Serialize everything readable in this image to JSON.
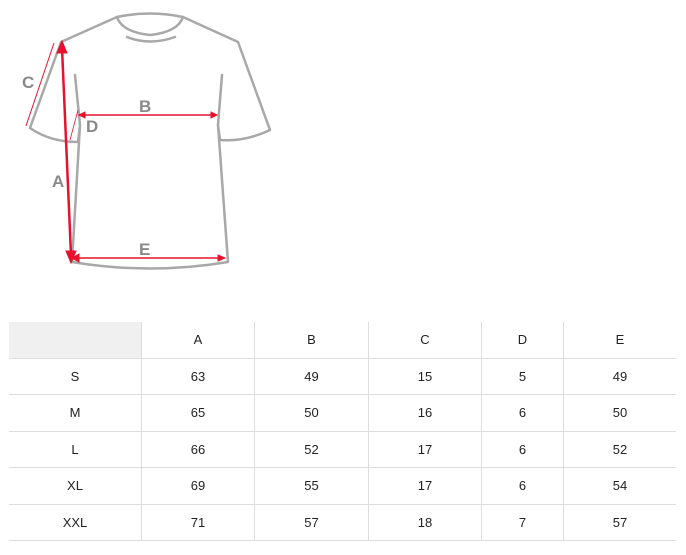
{
  "diagram": {
    "labels": {
      "A": "A",
      "B": "B",
      "C": "C",
      "D": "D",
      "E": "E"
    },
    "colors": {
      "outline": "#a0a0a0",
      "arrow": "#e8112d",
      "label": "#8a8a8a"
    }
  },
  "table": {
    "columns": [
      "",
      "A",
      "B",
      "C",
      "D",
      "E"
    ],
    "rows": [
      [
        "S",
        "63",
        "49",
        "15",
        "5",
        "49"
      ],
      [
        "M",
        "65",
        "50",
        "16",
        "6",
        "50"
      ],
      [
        "L",
        "66",
        "52",
        "17",
        "6",
        "52"
      ],
      [
        "XL",
        "69",
        "55",
        "17",
        "6",
        "54"
      ],
      [
        "XXL",
        "71",
        "57",
        "18",
        "7",
        "57"
      ]
    ]
  }
}
